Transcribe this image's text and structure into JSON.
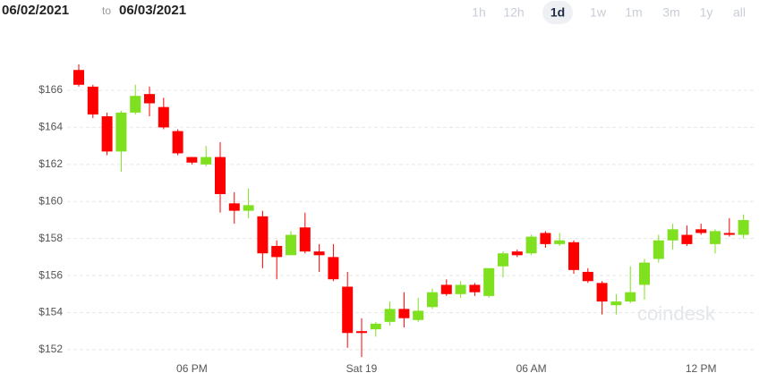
{
  "header": {
    "from": "06/02/2021",
    "to": "to",
    "until": "06/03/2021",
    "ranges": [
      "1h",
      "12h",
      "1d",
      "1w",
      "1m",
      "3m",
      "1y",
      "all"
    ],
    "selected_range": "1d"
  },
  "watermark": "coindesk",
  "chart_data": {
    "type": "candlestick",
    "up_color": "#7fe01f",
    "down_color": "#ff0000",
    "grid": true,
    "categories": [
      null,
      null,
      null,
      null,
      null,
      null,
      null,
      null,
      "06 PM",
      null,
      null,
      null,
      null,
      null,
      null,
      null,
      null,
      null,
      null,
      null,
      "Sat 19",
      null,
      null,
      null,
      null,
      null,
      null,
      null,
      null,
      null,
      null,
      null,
      "06 AM",
      null,
      null,
      null,
      null,
      null,
      null,
      null,
      null,
      null,
      null,
      null,
      "12 PM",
      null,
      null,
      null
    ],
    "open": [
      167.1,
      166.2,
      164.6,
      162.7,
      164.8,
      165.8,
      165.1,
      163.8,
      162.4,
      162.0,
      162.4,
      159.9,
      159.5,
      159.2,
      157.6,
      157.1,
      158.6,
      157.3,
      157.0,
      155.4,
      153.0,
      153.1,
      153.5,
      154.2,
      153.6,
      154.3,
      155.5,
      155.0,
      155.5,
      154.9,
      156.5,
      157.3,
      157.2,
      158.3,
      157.7,
      157.8,
      156.2,
      155.6,
      154.4,
      154.6,
      155.5,
      156.9,
      157.9,
      158.2,
      158.5,
      157.7,
      158.3,
      158.2
    ],
    "high": [
      167.4,
      166.3,
      164.8,
      164.9,
      166.3,
      166.2,
      165.6,
      163.9,
      162.4,
      163.0,
      163.2,
      160.5,
      160.7,
      159.5,
      157.9,
      158.4,
      159.4,
      157.7,
      157.7,
      156.2,
      153.7,
      153.5,
      154.6,
      155.1,
      154.8,
      155.3,
      155.8,
      155.7,
      155.6,
      156.4,
      157.3,
      157.4,
      158.2,
      158.4,
      158.3,
      157.9,
      156.4,
      155.7,
      155.0,
      156.5,
      156.9,
      158.2,
      158.8,
      158.7,
      158.8,
      158.5,
      159.1,
      159.3
    ],
    "low": [
      166.2,
      164.5,
      162.5,
      161.6,
      164.7,
      164.6,
      163.9,
      162.5,
      162.0,
      161.9,
      159.4,
      158.8,
      159.1,
      156.4,
      155.8,
      157.1,
      157.2,
      156.2,
      155.7,
      152.1,
      151.6,
      152.7,
      153.3,
      153.2,
      153.5,
      154.2,
      154.9,
      154.8,
      154.9,
      154.8,
      155.9,
      157.0,
      157.1,
      157.5,
      157.6,
      156.1,
      155.6,
      153.9,
      153.9,
      154.5,
      154.7,
      156.7,
      157.4,
      157.6,
      158.2,
      157.2,
      158.1,
      158.0
    ],
    "close": [
      166.3,
      164.7,
      162.7,
      164.8,
      165.7,
      165.3,
      164.0,
      162.6,
      162.1,
      162.4,
      160.4,
      159.5,
      159.8,
      157.2,
      157.0,
      158.2,
      157.3,
      157.1,
      155.8,
      152.9,
      152.9,
      153.4,
      154.2,
      153.7,
      154.1,
      155.1,
      155.0,
      155.5,
      155.1,
      156.4,
      157.2,
      157.1,
      158.1,
      157.7,
      157.9,
      156.3,
      155.7,
      154.6,
      154.6,
      155.1,
      156.7,
      157.9,
      158.5,
      157.7,
      158.3,
      158.4,
      158.2,
      159.0
    ],
    "ylim": [
      151.3,
      168
    ],
    "yticks": [
      {
        "value": 152,
        "label": "$152"
      },
      {
        "value": 154,
        "label": "$154"
      },
      {
        "value": 156,
        "label": "$156"
      },
      {
        "value": 158,
        "label": "$158"
      },
      {
        "value": 160,
        "label": "$160"
      },
      {
        "value": 162,
        "label": "$162"
      },
      {
        "value": 164,
        "label": "$164"
      },
      {
        "value": 166,
        "label": "$166"
      }
    ]
  }
}
